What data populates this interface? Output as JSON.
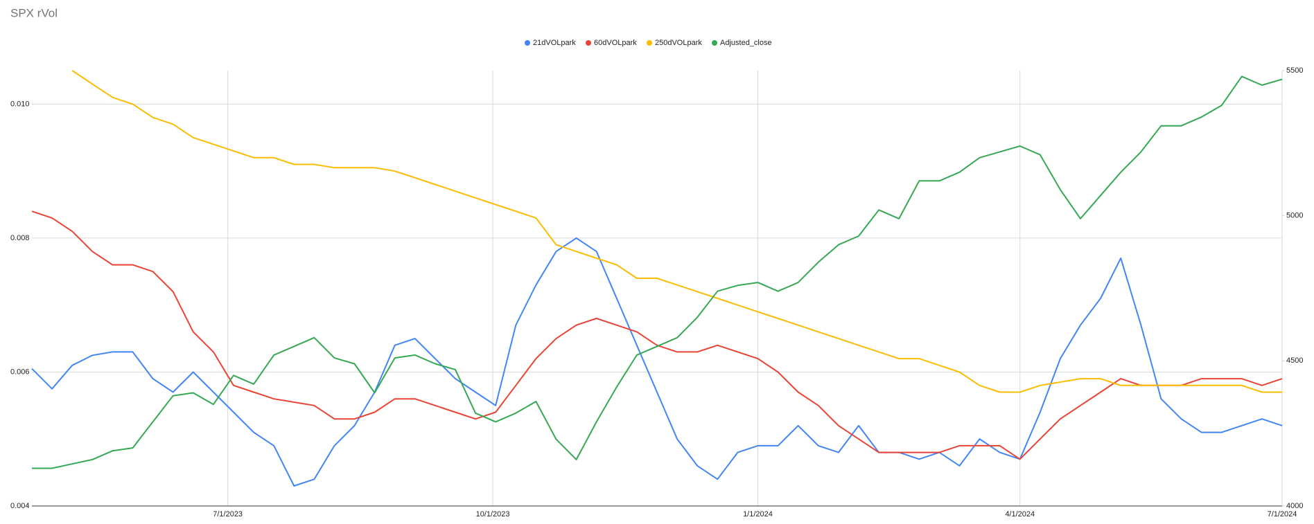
{
  "chart_data": {
    "type": "line",
    "title": "SPX rVol",
    "x": [
      "4/24/2023",
      "5/1/2023",
      "5/8/2023",
      "5/15/2023",
      "5/22/2023",
      "5/29/2023",
      "6/5/2023",
      "6/12/2023",
      "6/19/2023",
      "6/26/2023",
      "7/3/2023",
      "7/10/2023",
      "7/17/2023",
      "7/24/2023",
      "7/31/2023",
      "8/7/2023",
      "8/14/2023",
      "8/21/2023",
      "8/28/2023",
      "9/4/2023",
      "9/11/2023",
      "9/18/2023",
      "9/25/2023",
      "10/2/2023",
      "10/9/2023",
      "10/16/2023",
      "10/23/2023",
      "10/30/2023",
      "11/6/2023",
      "11/13/2023",
      "11/20/2023",
      "11/27/2023",
      "12/4/2023",
      "12/11/2023",
      "12/18/2023",
      "12/25/2023",
      "1/1/2024",
      "1/8/2024",
      "1/15/2024",
      "1/22/2024",
      "1/29/2024",
      "2/5/2024",
      "2/12/2024",
      "2/19/2024",
      "2/26/2024",
      "3/4/2024",
      "3/11/2024",
      "3/18/2024",
      "3/25/2024",
      "4/1/2024",
      "4/8/2024",
      "4/15/2024",
      "4/22/2024",
      "4/29/2024",
      "5/6/2024",
      "5/13/2024",
      "5/20/2024",
      "5/27/2024",
      "6/3/2024",
      "6/10/2024",
      "6/17/2024",
      "6/24/2024",
      "7/1/2024"
    ],
    "xlim": [
      "4/24/2023",
      "7/1/2024"
    ],
    "xticks": [
      "7/1/2023",
      "10/1/2023",
      "1/1/2024",
      "4/1/2024",
      "7/1/2024"
    ],
    "ylim": [
      0.004,
      0.0105
    ],
    "yticks": [
      0.004,
      0.006,
      0.008,
      {
        "value": 0.01,
        "label": "0.010"
      }
    ],
    "y2lim": [
      4000,
      5500
    ],
    "y2ticks": [
      4000,
      4500,
      5000,
      5500
    ],
    "grid": true,
    "legend": "top",
    "series": [
      {
        "name": "21dVOLpark",
        "color": "#4285f4",
        "values": [
          0.00605,
          0.00575,
          0.0061,
          0.00625,
          0.0063,
          0.0063,
          0.0059,
          0.0057,
          0.006,
          0.0057,
          0.0054,
          0.0051,
          0.0049,
          0.0043,
          0.0044,
          0.0049,
          0.0052,
          0.0057,
          0.0064,
          0.0065,
          0.0062,
          0.0059,
          0.0057,
          0.0055,
          0.0067,
          0.0073,
          0.0078,
          0.008,
          0.0078,
          0.0071,
          0.0064,
          0.0057,
          0.005,
          0.0046,
          0.0044,
          0.0048,
          0.0049,
          0.0049,
          0.0052,
          0.0049,
          0.0048,
          0.0052,
          0.0048,
          0.0048,
          0.0047,
          0.0048,
          0.0046,
          0.005,
          0.0048,
          0.0047,
          0.0054,
          0.0062,
          0.0067,
          0.0071,
          0.0077,
          0.0067,
          0.0056,
          0.0053,
          0.0051,
          0.0051,
          0.0052,
          0.0053,
          0.0052
        ]
      },
      {
        "name": "60dVOLpark",
        "color": "#ea4335",
        "values": [
          0.0084,
          0.0083,
          0.0081,
          0.0078,
          0.0076,
          0.0076,
          0.0075,
          0.0072,
          0.0066,
          0.0063,
          0.0058,
          0.0057,
          0.0056,
          0.00555,
          0.0055,
          0.0053,
          0.0053,
          0.0054,
          0.0056,
          0.0056,
          0.0055,
          0.0054,
          0.0053,
          0.0054,
          0.0058,
          0.0062,
          0.0065,
          0.0067,
          0.0068,
          0.0067,
          0.0066,
          0.0064,
          0.0063,
          0.0063,
          0.0064,
          0.0063,
          0.0062,
          0.006,
          0.0057,
          0.0055,
          0.0052,
          0.005,
          0.0048,
          0.0048,
          0.0048,
          0.0048,
          0.0049,
          0.0049,
          0.0049,
          0.0047,
          0.005,
          0.0053,
          0.0055,
          0.0057,
          0.0059,
          0.0058,
          0.0058,
          0.0058,
          0.0059,
          0.0059,
          0.0059,
          0.0058,
          0.0059
        ]
      },
      {
        "name": "250dVOLpark",
        "color": "#fbbc04",
        "values": [
          null,
          null,
          0.0105,
          0.0103,
          0.0101,
          0.01,
          0.0098,
          0.0097,
          0.0095,
          0.0094,
          0.0093,
          0.0092,
          0.0092,
          0.0091,
          0.0091,
          0.00905,
          0.00905,
          0.00905,
          0.009,
          0.0089,
          0.0088,
          0.0087,
          0.0086,
          0.0085,
          0.0084,
          0.0083,
          0.0079,
          0.0078,
          0.0077,
          0.0076,
          0.0074,
          0.0074,
          0.0073,
          0.0072,
          0.0071,
          0.007,
          0.0069,
          0.0068,
          0.0067,
          0.0066,
          0.0065,
          0.0064,
          0.0063,
          0.0062,
          0.0062,
          0.0061,
          0.006,
          0.0058,
          0.0057,
          0.0057,
          0.0058,
          0.00585,
          0.0059,
          0.0059,
          0.0058,
          0.0058,
          0.0058,
          0.0058,
          0.0058,
          0.0058,
          0.0058,
          0.0057,
          0.0057
        ]
      },
      {
        "name": "Adjusted_close",
        "color": "#34a853",
        "axis": "y2",
        "values": [
          4130,
          4130,
          4145,
          4160,
          4190,
          4200,
          4290,
          4380,
          4390,
          4350,
          4450,
          4420,
          4520,
          4550,
          4580,
          4510,
          4490,
          4390,
          4510,
          4520,
          4490,
          4470,
          4320,
          4290,
          4320,
          4360,
          4230,
          4160,
          4290,
          4410,
          4520,
          4550,
          4580,
          4650,
          4740,
          4760,
          4770,
          4740,
          4770,
          4840,
          4900,
          4930,
          5020,
          4990,
          5120,
          5120,
          5150,
          5200,
          5220,
          5240,
          5210,
          5090,
          4990,
          5070,
          5150,
          5220,
          5310,
          5310,
          5340,
          5380,
          5480,
          5450,
          5470
        ]
      }
    ]
  }
}
